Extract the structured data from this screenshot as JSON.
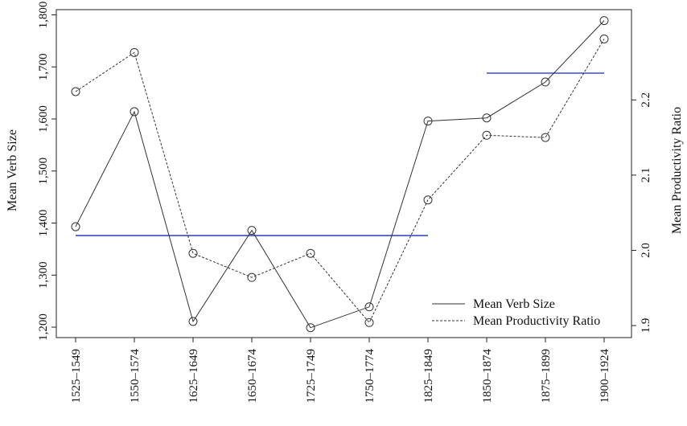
{
  "chart_data": {
    "type": "line",
    "categories": [
      "1525–1549",
      "1550–1574",
      "1625–1649",
      "1650–1674",
      "1725–1749",
      "1750–1774",
      "1825–1849",
      "1850–1874",
      "1875–1899",
      "1900–1924"
    ],
    "left_axis": {
      "label": "Mean Verb Size",
      "ylim": [
        1180,
        1810
      ],
      "ticks": [
        1200,
        1300,
        1400,
        1500,
        1600,
        1700,
        1800
      ],
      "tick_labels": [
        "1,200",
        "1,300",
        "1,400",
        "1,500",
        "1,600",
        "1,700",
        "1,800"
      ]
    },
    "right_axis": {
      "label": "Mean Productivity Ratio",
      "ylim": [
        1.884,
        2.32
      ],
      "ticks": [
        1.9,
        2.0,
        2.1,
        2.2
      ],
      "tick_labels": [
        "1.9",
        "2.0",
        "2.1",
        "2.2"
      ]
    },
    "series": [
      {
        "name": "Mean Verb Size",
        "axis": "left",
        "style": "solid",
        "values": [
          1393,
          1614,
          1211,
          1386,
          1199,
          1239,
          1596,
          1602,
          1671,
          1789
        ]
      },
      {
        "name": "Mean Productivity Ratio",
        "axis": "right",
        "style": "dashed",
        "values": [
          2.211,
          2.263,
          1.996,
          1.964,
          1.996,
          1.904,
          2.067,
          2.153,
          2.15,
          2.281
        ]
      }
    ],
    "reference_lines": [
      {
        "axis": "left",
        "value": 1376,
        "from_index": 0,
        "to_index": 6,
        "color": "#3b4bb8"
      },
      {
        "axis": "left",
        "value": 1688,
        "from_index": 7,
        "to_index": 9,
        "color": "#3b4bb8"
      }
    ],
    "legend": {
      "placement": "bottom-right",
      "entries": [
        "Mean Verb Size",
        "Mean Productivity Ratio"
      ]
    },
    "grid": false
  }
}
